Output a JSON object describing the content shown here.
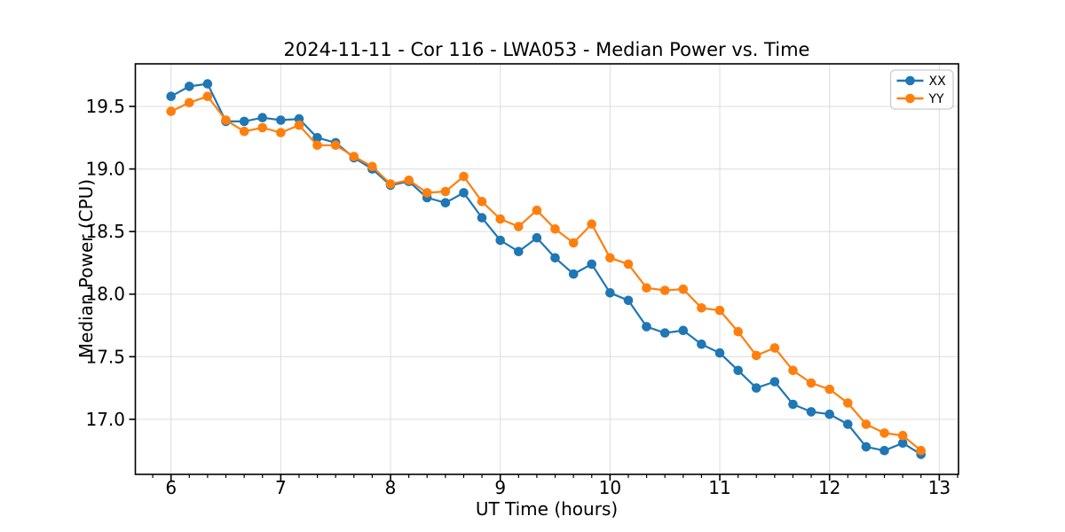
{
  "chart_data": {
    "type": "line",
    "title": "2024-11-11 - Cor 116 - LWA053 - Median Power vs. Time",
    "xlabel": "UT Time (hours)",
    "ylabel": "Median Power (CPU)",
    "xlim": [
      5.675,
      13.175
    ],
    "ylim": [
      16.56,
      19.84
    ],
    "xticks": [
      6,
      7,
      8,
      9,
      10,
      11,
      12,
      13
    ],
    "yticks": [
      17.0,
      17.5,
      18.0,
      18.5,
      19.0,
      19.5
    ],
    "minor_xtick_step_hours": 0.1667,
    "grid": true,
    "legend_position": "upper-right",
    "x": [
      6.0,
      6.167,
      6.333,
      6.5,
      6.667,
      6.833,
      7.0,
      7.167,
      7.333,
      7.5,
      7.667,
      7.833,
      8.0,
      8.167,
      8.333,
      8.5,
      8.667,
      8.833,
      9.0,
      9.167,
      9.333,
      9.5,
      9.667,
      9.833,
      10.0,
      10.167,
      10.333,
      10.5,
      10.667,
      10.833,
      11.0,
      11.167,
      11.333,
      11.5,
      11.667,
      11.833,
      12.0,
      12.167,
      12.333,
      12.5,
      12.667,
      12.833
    ],
    "series": [
      {
        "name": "XX",
        "color": "#1f77b4",
        "values": [
          19.58,
          19.66,
          19.68,
          19.38,
          19.38,
          19.41,
          19.39,
          19.4,
          19.25,
          19.21,
          19.09,
          19.0,
          18.87,
          18.9,
          18.77,
          18.73,
          18.81,
          18.61,
          18.43,
          18.34,
          18.45,
          18.29,
          18.16,
          18.24,
          18.01,
          17.95,
          17.74,
          17.69,
          17.71,
          17.6,
          17.53,
          17.39,
          17.25,
          17.3,
          17.12,
          17.06,
          17.04,
          16.96,
          16.78,
          16.75,
          16.81,
          16.72
        ]
      },
      {
        "name": "YY",
        "color": "#ff7f0e",
        "values": [
          19.46,
          19.53,
          19.58,
          19.39,
          19.3,
          19.33,
          19.29,
          19.35,
          19.19,
          19.19,
          19.1,
          19.02,
          18.88,
          18.91,
          18.81,
          18.82,
          18.94,
          18.74,
          18.6,
          18.54,
          18.67,
          18.52,
          18.41,
          18.56,
          18.29,
          18.24,
          18.05,
          18.03,
          18.04,
          17.89,
          17.87,
          17.7,
          17.51,
          17.57,
          17.39,
          17.29,
          17.24,
          17.13,
          16.96,
          16.89,
          16.87,
          16.75
        ]
      }
    ],
    "styles": {
      "grid_color": "#dcdcdc",
      "spine_color": "#000000",
      "tick_label_color": "#000000",
      "legend_border_color": "#cccccc",
      "background_color": "#ffffff"
    }
  }
}
